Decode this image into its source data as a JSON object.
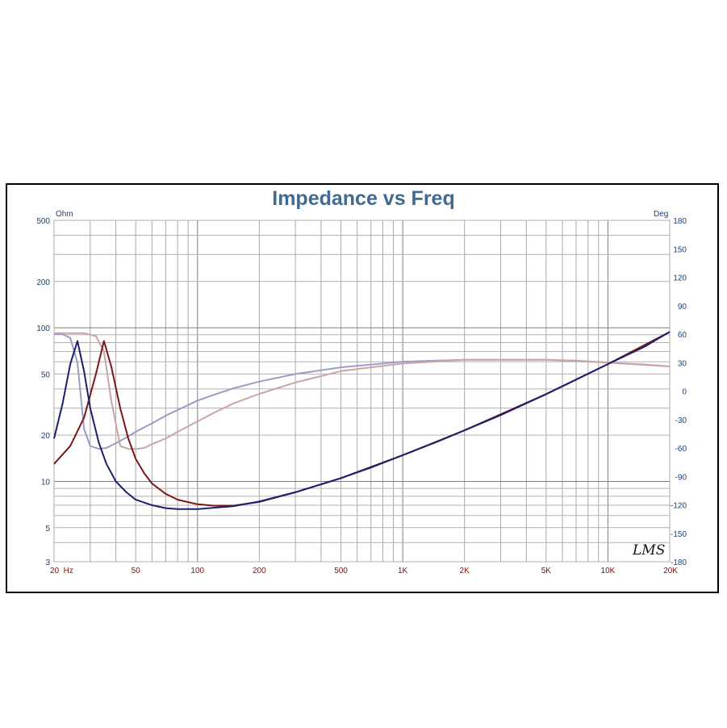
{
  "chart_data": {
    "type": "line",
    "title": "Impedance vs Freq",
    "y_left_unit": "Ohm",
    "y_right_unit": "Deg",
    "x_scale": "log",
    "y_left_scale": "log",
    "xlim": [
      20,
      20000
    ],
    "ylim_left": [
      3,
      500
    ],
    "ylim_right": [
      -180,
      180
    ],
    "grid": true,
    "x_ticks": [
      {
        "value": 20,
        "label": "20  Hz"
      },
      {
        "value": 50,
        "label": "50"
      },
      {
        "value": 100,
        "label": "100"
      },
      {
        "value": 200,
        "label": "200"
      },
      {
        "value": 500,
        "label": "500"
      },
      {
        "value": 1000,
        "label": "1K"
      },
      {
        "value": 2000,
        "label": "2K"
      },
      {
        "value": 5000,
        "label": "5K"
      },
      {
        "value": 10000,
        "label": "10K"
      },
      {
        "value": 20000,
        "label": "20K"
      }
    ],
    "y_left_ticks": [
      {
        "value": 500,
        "label": "500"
      },
      {
        "value": 200,
        "label": "200"
      },
      {
        "value": 100,
        "label": "100"
      },
      {
        "value": 50,
        "label": "50"
      },
      {
        "value": 20,
        "label": "20"
      },
      {
        "value": 10,
        "label": "10"
      },
      {
        "value": 5,
        "label": "5"
      },
      {
        "value": 3,
        "label": "3"
      }
    ],
    "y_right_ticks": [
      {
        "value": 180,
        "label": "180"
      },
      {
        "value": 150,
        "label": "150"
      },
      {
        "value": 120,
        "label": "120"
      },
      {
        "value": 90,
        "label": "90"
      },
      {
        "value": 60,
        "label": "60"
      },
      {
        "value": 30,
        "label": "30"
      },
      {
        "value": 0,
        "label": "0"
      },
      {
        "value": -30,
        "label": "-30"
      },
      {
        "value": -60,
        "label": "-60"
      },
      {
        "value": -90,
        "label": "-90"
      },
      {
        "value": -120,
        "label": "-120"
      },
      {
        "value": -150,
        "label": "-150"
      },
      {
        "value": -180,
        "label": "-180"
      }
    ],
    "series": [
      {
        "axis": "left",
        "color": "#1a1f6e",
        "x": [
          20,
          22,
          24,
          26,
          28,
          30,
          33,
          36,
          40,
          45,
          50,
          60,
          70,
          80,
          100,
          150,
          200,
          300,
          500,
          700,
          1000,
          1500,
          2000,
          3000,
          5000,
          7000,
          10000,
          15000,
          20000
        ],
        "y": [
          19,
          32,
          58,
          82,
          52,
          30,
          18,
          13,
          10,
          8.5,
          7.6,
          7.0,
          6.7,
          6.6,
          6.6,
          6.9,
          7.4,
          8.5,
          10.5,
          12.3,
          14.8,
          18.3,
          21.5,
          27,
          37,
          46,
          58,
          75,
          94
        ]
      },
      {
        "axis": "left",
        "color": "#7a1818",
        "x": [
          20,
          24,
          28,
          32,
          35,
          38,
          42,
          46,
          50,
          55,
          60,
          70,
          80,
          100,
          120,
          150,
          200,
          300,
          500,
          1000,
          2000,
          5000,
          10000,
          20000
        ],
        "y": [
          13,
          17,
          26,
          50,
          82,
          56,
          30,
          19,
          14,
          11.3,
          9.7,
          8.3,
          7.6,
          7.1,
          6.95,
          6.95,
          7.35,
          8.5,
          10.5,
          14.8,
          21.5,
          37,
          58,
          94
        ]
      },
      {
        "axis": "right",
        "color": "#9c9cc4",
        "x": [
          20,
          22,
          24,
          26,
          28,
          30,
          33,
          36,
          40,
          45,
          50,
          60,
          70,
          80,
          100,
          120,
          150,
          200,
          300,
          500,
          1000,
          2000,
          3000,
          5000,
          7000,
          10000,
          15000,
          20000
        ],
        "y": [
          60,
          60,
          56,
          30,
          -40,
          -58,
          -61,
          -60,
          -55,
          -49,
          -43,
          -34,
          -26,
          -20,
          -10,
          -4,
          3,
          10,
          18,
          25,
          31,
          33,
          33,
          33,
          32,
          30,
          28,
          26
        ]
      },
      {
        "axis": "right",
        "color": "#caa5a2",
        "x": [
          20,
          24,
          28,
          32,
          35,
          38,
          42,
          46,
          50,
          55,
          60,
          70,
          80,
          100,
          120,
          150,
          200,
          300,
          500,
          1000,
          2000,
          3000,
          5000,
          10000,
          20000
        ],
        "y": [
          61,
          61,
          61,
          58,
          42,
          -10,
          -58,
          -61,
          -61,
          -60,
          -56,
          -50,
          -43,
          -32,
          -23,
          -13,
          -3,
          9,
          21,
          29,
          33,
          33,
          33,
          30,
          26
        ]
      }
    ]
  },
  "signature": "LMS"
}
